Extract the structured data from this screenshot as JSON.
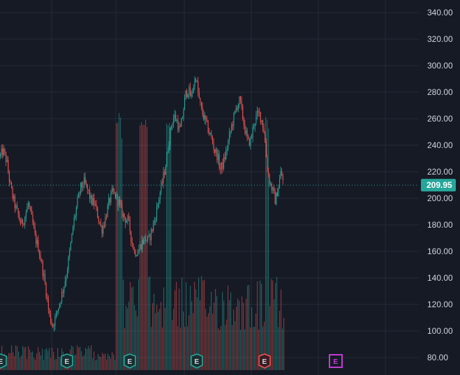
{
  "chart_data": {
    "type": "candlestick",
    "y_axis_ticks": [
      "340.00",
      "320.00",
      "300.00",
      "280.00",
      "260.00",
      "240.00",
      "220.00",
      "200.00",
      "180.00",
      "160.00",
      "140.00",
      "120.00",
      "100.00",
      "80.00"
    ],
    "ylim": [
      76,
      346
    ],
    "grid": true,
    "current_price": {
      "value": 209.95,
      "label": "209.95",
      "color": "#26a69a"
    },
    "colors": {
      "background": "#161a25",
      "grid": "#252a36",
      "up": "#26a69a",
      "down": "#ef5350",
      "up_volume": "#26a69a",
      "down_volume": "#ef5350",
      "axis_text": "#d1d4dc",
      "earnings_past": "#26a69a",
      "earnings_negative": "#ef5350",
      "earnings_future": "#c23bd4"
    },
    "price_path": [
      [
        0,
        232
      ],
      [
        4,
        236
      ],
      [
        9,
        228
      ],
      [
        14,
        210
      ],
      [
        20,
        196
      ],
      [
        25,
        188
      ],
      [
        30,
        180
      ],
      [
        35,
        186
      ],
      [
        40,
        196
      ],
      [
        45,
        184
      ],
      [
        50,
        170
      ],
      [
        55,
        162
      ],
      [
        60,
        148
      ],
      [
        65,
        132
      ],
      [
        70,
        112
      ],
      [
        75,
        104
      ],
      [
        80,
        112
      ],
      [
        86,
        124
      ],
      [
        90,
        132
      ],
      [
        95,
        144
      ],
      [
        100,
        162
      ],
      [
        105,
        182
      ],
      [
        110,
        196
      ],
      [
        115,
        208
      ],
      [
        120,
        212
      ],
      [
        125,
        206
      ],
      [
        130,
        198
      ],
      [
        135,
        196
      ],
      [
        140,
        186
      ],
      [
        145,
        176
      ],
      [
        150,
        184
      ],
      [
        155,
        196
      ],
      [
        160,
        204
      ],
      [
        165,
        202
      ],
      [
        170,
        196
      ],
      [
        175,
        188
      ],
      [
        180,
        184
      ],
      [
        184,
        182
      ],
      [
        188,
        168
      ],
      [
        192,
        160
      ],
      [
        197,
        160
      ],
      [
        202,
        166
      ],
      [
        207,
        170
      ],
      [
        212,
        168
      ],
      [
        217,
        176
      ],
      [
        222,
        186
      ],
      [
        227,
        200
      ],
      [
        232,
        212
      ],
      [
        237,
        226
      ],
      [
        241,
        242
      ],
      [
        245,
        256
      ],
      [
        249,
        262
      ],
      [
        253,
        258
      ],
      [
        257,
        250
      ],
      [
        261,
        262
      ],
      [
        265,
        278
      ],
      [
        269,
        282
      ],
      [
        273,
        276
      ],
      [
        278,
        288
      ],
      [
        280,
        292
      ],
      [
        283,
        280
      ],
      [
        287,
        268
      ],
      [
        291,
        262
      ],
      [
        295,
        256
      ],
      [
        299,
        250
      ],
      [
        303,
        244
      ],
      [
        307,
        236
      ],
      [
        311,
        232
      ],
      [
        315,
        222
      ],
      [
        319,
        226
      ],
      [
        323,
        234
      ],
      [
        327,
        244
      ],
      [
        331,
        254
      ],
      [
        335,
        262
      ],
      [
        339,
        270
      ],
      [
        343,
        274
      ],
      [
        347,
        262
      ],
      [
        351,
        250
      ],
      [
        355,
        242
      ],
      [
        359,
        244
      ],
      [
        363,
        256
      ],
      [
        367,
        262
      ],
      [
        371,
        264
      ],
      [
        375,
        258
      ],
      [
        378,
        250
      ],
      [
        382,
        224
      ],
      [
        386,
        212
      ],
      [
        390,
        206
      ],
      [
        394,
        198
      ],
      [
        398,
        208
      ],
      [
        402,
        220
      ],
      [
        406,
        210
      ]
    ],
    "volume_bursts": [
      [
        166,
        175,
        160,
        200
      ],
      [
        200,
        210,
        168,
        185
      ],
      [
        237,
        244,
        172,
        185
      ],
      [
        380,
        384,
        167,
        185
      ]
    ],
    "earnings_markers": [
      {
        "x": 1,
        "label": "E",
        "kind": "past"
      },
      {
        "x": 96,
        "label": "E",
        "kind": "past"
      },
      {
        "x": 186,
        "label": "E",
        "kind": "past"
      },
      {
        "x": 282,
        "label": "E",
        "kind": "past"
      },
      {
        "x": 379,
        "label": "E",
        "kind": "negative"
      },
      {
        "x": 481,
        "label": "E",
        "kind": "future"
      }
    ]
  }
}
